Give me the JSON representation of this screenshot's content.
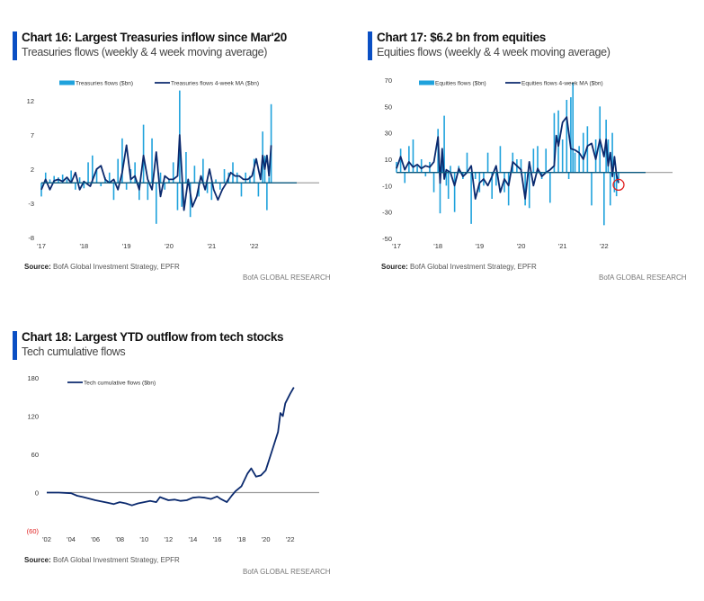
{
  "colors": {
    "accent": "#0a4fc4",
    "bar": "#1fa2dc",
    "line": "#0b2a6e",
    "zero": "#999999",
    "negative_label": "#e02020",
    "circle": "#e02020"
  },
  "panels": [
    {
      "title": "Chart 16: Largest Treasuries inflow since Mar'20",
      "subtitle": "Treasuries flows (weekly & 4 week moving average)",
      "source_label": "Source:",
      "source_text": " BofA Global Investment Strategy, EPFR",
      "brand": "BofA GLOBAL RESEARCH"
    },
    {
      "title": "Chart 17: $6.2 bn from equities",
      "subtitle": "Equities flows (weekly & 4 week moving average)",
      "source_label": "Source:",
      "source_text": " BofA Global Investment Strategy, EPFR",
      "brand": "BofA GLOBAL RESEARCH"
    },
    {
      "title": "Chart 18: Largest YTD outflow from tech stocks",
      "subtitle": "Tech cumulative flows",
      "source_label": "Source:",
      "source_text": " BofA Global Investment Strategy, EPFR",
      "brand": "BofA GLOBAL RESEARCH"
    }
  ],
  "chart_data": [
    {
      "type": "bar",
      "title": "Chart 16: Largest Treasuries inflow since Mar'20",
      "legend": [
        "Treasuries flows ($bn)",
        "Treasuries flows 4-week MA ($bn)"
      ],
      "legend_placement": "top",
      "yticks": [
        "12",
        "7",
        "2",
        "-3",
        "-8"
      ],
      "ytick_values": [
        12,
        7,
        2,
        -3,
        -8
      ],
      "ylim": [
        -8,
        12
      ],
      "xticks": [
        "'17",
        "'18",
        "'19",
        "'20",
        "'21",
        "'22"
      ],
      "xlim": [
        2017,
        2023
      ],
      "series": [
        {
          "name": "Treasuries flows ($bn)",
          "kind": "bar",
          "x": [
            2017.0,
            2017.1,
            2017.2,
            2017.3,
            2017.4,
            2017.5,
            2017.6,
            2017.7,
            2017.8,
            2017.9,
            2018.0,
            2018.1,
            2018.2,
            2018.3,
            2018.4,
            2018.5,
            2018.6,
            2018.7,
            2018.8,
            2018.9,
            2019.0,
            2019.1,
            2019.2,
            2019.3,
            2019.4,
            2019.5,
            2019.6,
            2019.7,
            2019.8,
            2019.9,
            2020.0,
            2020.1,
            2020.2,
            2020.25,
            2020.3,
            2020.4,
            2020.5,
            2020.6,
            2020.7,
            2020.8,
            2020.9,
            2021.0,
            2021.1,
            2021.2,
            2021.3,
            2021.4,
            2021.5,
            2021.6,
            2021.7,
            2021.8,
            2021.9,
            2022.0,
            2022.1,
            2022.2,
            2022.25,
            2022.3,
            2022.35,
            2022.4
          ],
          "values": [
            -2,
            1.5,
            0.5,
            1,
            0.8,
            1.2,
            0.5,
            1.8,
            -1,
            0.8,
            -0.8,
            3,
            4,
            2,
            -0.5,
            0.8,
            1.5,
            -2.5,
            3.5,
            6.5,
            -1,
            2,
            3,
            -2.5,
            8.5,
            -2.5,
            6.5,
            -6,
            1.5,
            -1,
            0.5,
            3,
            -4,
            13.5,
            -3.5,
            4.5,
            -5,
            2.5,
            -2,
            3.5,
            -1.5,
            -2.5,
            0.5,
            -1,
            2,
            1.5,
            3,
            1.5,
            -2,
            1.5,
            1,
            3.5,
            -2,
            7.5,
            4,
            -4,
            0.8,
            11.5
          ]
        },
        {
          "name": "Treasuries flows 4-week MA ($bn)",
          "kind": "line",
          "x": [
            2017.0,
            2017.1,
            2017.2,
            2017.3,
            2017.4,
            2017.5,
            2017.6,
            2017.7,
            2017.8,
            2017.9,
            2018.0,
            2018.15,
            2018.3,
            2018.4,
            2018.5,
            2018.6,
            2018.7,
            2018.8,
            2018.9,
            2019.0,
            2019.1,
            2019.2,
            2019.3,
            2019.4,
            2019.5,
            2019.6,
            2019.7,
            2019.8,
            2019.9,
            2020.0,
            2020.1,
            2020.2,
            2020.25,
            2020.35,
            2020.45,
            2020.55,
            2020.65,
            2020.75,
            2020.85,
            2020.95,
            2021.05,
            2021.15,
            2021.25,
            2021.35,
            2021.45,
            2021.55,
            2021.65,
            2021.75,
            2021.85,
            2021.95,
            2022.05,
            2022.15,
            2022.2,
            2022.25,
            2022.3,
            2022.35,
            2022.4
          ],
          "values": [
            -1,
            0.5,
            -1,
            0.3,
            0.5,
            0.2,
            0.8,
            0,
            1.5,
            -1,
            0.2,
            -0.5,
            2,
            2.5,
            0.5,
            0,
            0.5,
            -1,
            1.5,
            5.5,
            0.5,
            1,
            -1,
            4,
            0.5,
            -1,
            4.5,
            -2,
            1,
            0.5,
            0.5,
            1,
            7,
            -4,
            0.5,
            -3.5,
            -2,
            1,
            -1,
            2,
            -1,
            -2.5,
            -1,
            0,
            1.5,
            1,
            1,
            0.5,
            0.5,
            1,
            3.5,
            0.5,
            4,
            2,
            4,
            1,
            5.5
          ]
        }
      ]
    },
    {
      "type": "bar",
      "title": "Chart 17: $6.2 bn from equities",
      "legend": [
        "Equities flows ($bn)",
        "Equities flows 4-week MA ($bn)"
      ],
      "legend_placement": "top",
      "yticks": [
        "70",
        "50",
        "30",
        "10",
        "-10",
        "-30",
        "-50"
      ],
      "ytick_values": [
        70,
        50,
        30,
        10,
        -10,
        -30,
        -50
      ],
      "ylim": [
        -50,
        70
      ],
      "xticks": [
        "'17",
        "'18",
        "'19",
        "'20",
        "'21",
        "'22"
      ],
      "xlim": [
        2017,
        2023
      ],
      "annotation": "red circle highlighting latest weekly outflow of $6.2bn",
      "series": [
        {
          "name": "Equities flows ($bn)",
          "kind": "bar",
          "x": [
            2017.0,
            2017.1,
            2017.2,
            2017.3,
            2017.4,
            2017.5,
            2017.6,
            2017.7,
            2017.8,
            2017.9,
            2018.0,
            2018.05,
            2018.1,
            2018.15,
            2018.2,
            2018.25,
            2018.3,
            2018.4,
            2018.5,
            2018.6,
            2018.7,
            2018.8,
            2018.9,
            2019.0,
            2019.1,
            2019.2,
            2019.3,
            2019.4,
            2019.5,
            2019.6,
            2019.7,
            2019.8,
            2019.9,
            2020.0,
            2020.1,
            2020.2,
            2020.3,
            2020.4,
            2020.5,
            2020.6,
            2020.7,
            2020.8,
            2020.9,
            2021.0,
            2021.1,
            2021.15,
            2021.2,
            2021.25,
            2021.3,
            2021.4,
            2021.5,
            2021.6,
            2021.7,
            2021.8,
            2021.9,
            2022.0,
            2022.05,
            2022.1,
            2022.15,
            2022.2,
            2022.25,
            2022.3,
            2022.35
          ],
          "values": [
            8,
            18,
            -8,
            20,
            25,
            5,
            10,
            -3,
            8,
            -15,
            33,
            -31,
            10,
            43,
            -10,
            -20,
            5,
            -30,
            5,
            -5,
            15,
            -39,
            -5,
            -15,
            -10,
            15,
            -20,
            -10,
            20,
            -15,
            -25,
            15,
            10,
            10,
            -25,
            -27,
            18,
            20,
            -5,
            18,
            -23,
            45,
            47,
            25,
            55,
            -5,
            57,
            68,
            15,
            20,
            30,
            35,
            -25,
            25,
            50,
            -40,
            40,
            25,
            -25,
            30,
            -15,
            -18,
            -6
          ]
        },
        {
          "name": "Equities flows 4-week MA ($bn)",
          "kind": "line",
          "x": [
            2017.0,
            2017.1,
            2017.2,
            2017.3,
            2017.4,
            2017.5,
            2017.6,
            2017.7,
            2017.8,
            2017.9,
            2018.0,
            2018.05,
            2018.1,
            2018.15,
            2018.2,
            2018.3,
            2018.4,
            2018.5,
            2018.6,
            2018.7,
            2018.8,
            2018.9,
            2019.0,
            2019.1,
            2019.2,
            2019.3,
            2019.4,
            2019.5,
            2019.6,
            2019.7,
            2019.8,
            2019.9,
            2020.0,
            2020.1,
            2020.2,
            2020.3,
            2020.4,
            2020.5,
            2020.6,
            2020.7,
            2020.8,
            2020.85,
            2020.9,
            2021.0,
            2021.1,
            2021.15,
            2021.2,
            2021.3,
            2021.4,
            2021.5,
            2021.6,
            2021.7,
            2021.8,
            2021.9,
            2022.0,
            2022.05,
            2022.1,
            2022.15,
            2022.2,
            2022.25,
            2022.3,
            2022.35
          ],
          "values": [
            3,
            12,
            2,
            8,
            4,
            6,
            3,
            5,
            4,
            8,
            27,
            -8,
            18,
            -5,
            2,
            0,
            -10,
            3,
            -3,
            0,
            5,
            -20,
            -8,
            -5,
            -10,
            -3,
            5,
            -15,
            -5,
            -10,
            8,
            5,
            2,
            -20,
            8,
            -10,
            3,
            -3,
            0,
            2,
            5,
            28,
            20,
            38,
            42,
            30,
            18,
            17,
            15,
            10,
            20,
            22,
            10,
            25,
            12,
            25,
            5,
            15,
            -3,
            12,
            -2,
            -8
          ]
        }
      ]
    },
    {
      "type": "line",
      "title": "Chart 18: Largest YTD outflow from tech stocks",
      "legend": [
        "Tech cumulative flows ($bn)"
      ],
      "legend_placement": "top-left",
      "yticks": [
        "180",
        "120",
        "60",
        "0",
        "(60)"
      ],
      "ytick_values": [
        180,
        120,
        60,
        0,
        -60
      ],
      "ylim": [
        -60,
        180
      ],
      "xticks": [
        "'02",
        "'04",
        "'06",
        "'08",
        "'10",
        "'12",
        "'14",
        "'16",
        "'18",
        "'20",
        "'22"
      ],
      "xlim": [
        2002,
        2023.5
      ],
      "series": [
        {
          "name": "Tech cumulative flows ($bn)",
          "kind": "line",
          "x": [
            2002,
            2003,
            2004,
            2004.5,
            2005,
            2006,
            2007,
            2007.5,
            2008,
            2008.5,
            2009,
            2009.5,
            2010,
            2010.5,
            2011,
            2011.3,
            2012,
            2012.5,
            2013,
            2013.5,
            2014,
            2014.5,
            2015,
            2015.5,
            2016,
            2016.3,
            2016.8,
            2017.2,
            2017.5,
            2018,
            2018.5,
            2018.8,
            2019.2,
            2019.6,
            2020,
            2020.5,
            2021,
            2021.2,
            2021.4,
            2021.6,
            2022,
            2022.3
          ],
          "values": [
            0,
            0,
            -1,
            -5,
            -7,
            -12,
            -16,
            -18,
            -15,
            -17,
            -20,
            -17,
            -15,
            -13,
            -15,
            -7,
            -12,
            -11,
            -13,
            -12,
            -8,
            -7,
            -8,
            -10,
            -6,
            -10,
            -15,
            -5,
            2,
            10,
            30,
            38,
            25,
            27,
            35,
            65,
            95,
            125,
            120,
            140,
            155,
            165
          ]
        }
      ]
    }
  ]
}
